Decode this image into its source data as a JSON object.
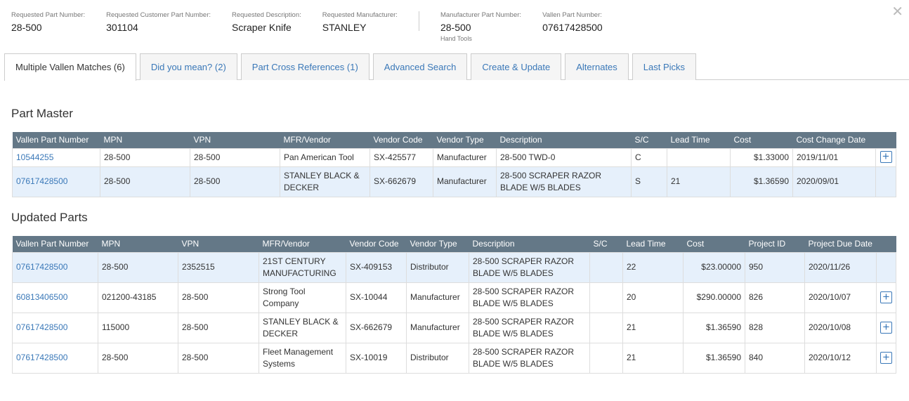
{
  "header": {
    "fields": [
      {
        "label": "Requested Part Number:",
        "value": "28-500"
      },
      {
        "label": "Requested Customer Part Number:",
        "value": "301104"
      },
      {
        "label": "Requested Description:",
        "value": "Scraper Knife"
      },
      {
        "label": "Requested Manufacturer:",
        "value": "STANLEY"
      },
      {
        "label": "Manufacturer Part Number:",
        "value": "28-500",
        "sub": "Hand Tools"
      },
      {
        "label": "Vallen Part Number:",
        "value": "07617428500"
      }
    ]
  },
  "tabs": [
    "Multiple Vallen Matches (6)",
    "Did you mean? (2)",
    "Part Cross References (1)",
    "Advanced Search",
    "Create & Update",
    "Alternates",
    "Last Picks"
  ],
  "part_master": {
    "title": "Part Master",
    "columns": [
      "Vallen Part Number",
      "MPN",
      "VPN",
      "MFR/Vendor",
      "Vendor Code",
      "Vendor Type",
      "Description",
      "S/C",
      "Lead Time",
      "Cost",
      "Cost Change Date"
    ],
    "rows": [
      [
        "10544255",
        "28-500",
        "28-500",
        "Pan American Tool",
        "SX-425577",
        "Manufacturer",
        "28-500 TWD-0",
        "C",
        "",
        "$1.33000",
        "2019/11/01"
      ],
      [
        "07617428500",
        "28-500",
        "28-500",
        "STANLEY BLACK & DECKER",
        "SX-662679",
        "Manufacturer",
        "28-500 SCRAPER RAZOR BLADE W/5 BLADES",
        "S",
        "21",
        "$1.36590",
        "2020/09/01"
      ]
    ]
  },
  "updated_parts": {
    "title": "Updated Parts",
    "columns": [
      "Vallen Part Number",
      "MPN",
      "VPN",
      "MFR/Vendor",
      "Vendor Code",
      "Vendor Type",
      "Description",
      "S/C",
      "Lead Time",
      "Cost",
      "Project ID",
      "Project Due Date"
    ],
    "rows": [
      [
        "07617428500",
        "28-500",
        "2352515",
        "21ST CENTURY MANUFACTURING",
        "SX-409153",
        "Distributor",
        "28-500 SCRAPER RAZOR BLADE W/5 BLADES",
        "",
        "22",
        "$23.00000",
        "950",
        "2020/11/26"
      ],
      [
        "60813406500",
        "021200-43185",
        "28-500",
        "Strong Tool Company",
        "SX-10044",
        "Manufacturer",
        "28-500 SCRAPER RAZOR BLADE W/5 BLADES",
        "",
        "20",
        "$290.00000",
        "826",
        "2020/10/07"
      ],
      [
        "07617428500",
        "115000",
        "28-500",
        "STANLEY BLACK & DECKER",
        "SX-662679",
        "Manufacturer",
        "28-500 SCRAPER RAZOR BLADE W/5 BLADES",
        "",
        "21",
        "$1.36590",
        "828",
        "2020/10/08"
      ],
      [
        "07617428500",
        "28-500",
        "28-500",
        "Fleet Management Systems",
        "SX-10019",
        "Distributor",
        "28-500 SCRAPER RAZOR BLADE W/5 BLADES",
        "",
        "21",
        "$1.36590",
        "840",
        "2020/10/12"
      ]
    ]
  },
  "highlight_color": "#e6f0fb",
  "header_color": "#647887",
  "link_color": "#3a78b8"
}
